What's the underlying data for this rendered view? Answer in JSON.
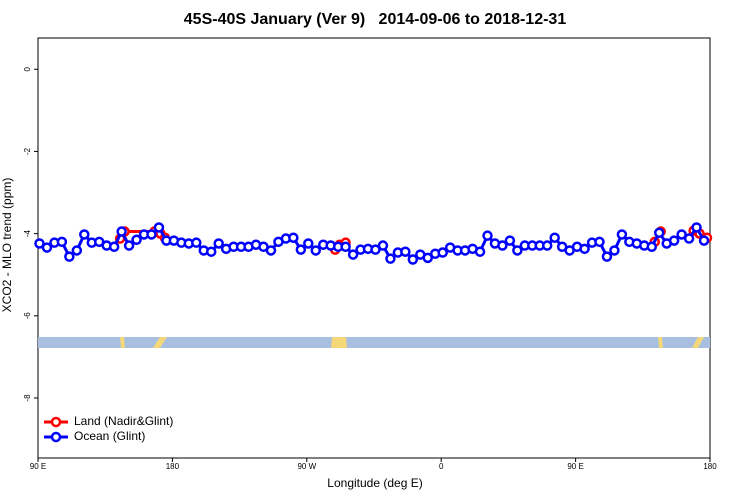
{
  "chart_data": {
    "type": "line",
    "title": "45S-40S January (Ver 9)   2014-09-06 to 2018-12-31",
    "x_label": "Longitude (deg E)",
    "y_label": "XCO2 - MLO trend (ppm)",
    "xlim": [
      90,
      540
    ],
    "xticks": [
      {
        "value": 90,
        "label": "90 E"
      },
      180,
      {
        "value": 270,
        "label": "90 W"
      },
      {
        "value": 360,
        "label": "0"
      },
      {
        "value": 450,
        "label": "90 E"
      },
      {
        "value": 540,
        "label": "180"
      }
    ],
    "ylim": [
      -9.46,
      0.76
    ],
    "yticks": [
      0,
      -2,
      -4,
      -6,
      -8
    ],
    "legend": "bottom-left",
    "series": [
      {
        "name": "Land (Nadir&Glint)",
        "color": "#ff0000",
        "x": [
          145,
          148,
          168,
          172,
          175,
          null,
          289,
          292,
          296,
          null,
          503,
          507,
          null,
          529,
          533,
          538
        ],
        "values": [
          -4.12,
          -3.95,
          -3.95,
          -4.0,
          -4.1,
          null,
          -4.39,
          -4.27,
          -4.22,
          null,
          -4.2,
          -3.95,
          null,
          -3.93,
          -4.0,
          -4.1
        ]
      },
      {
        "name": "Ocean (Glint)",
        "color": "#0000ff",
        "x": [
          91,
          96,
          101,
          106,
          111,
          116,
          121,
          126,
          131,
          136,
          141,
          146,
          151,
          156,
          161,
          166,
          171,
          176,
          181,
          186,
          191,
          196,
          201,
          206,
          211,
          216,
          221,
          226,
          231,
          236,
          241,
          246,
          251,
          256,
          261,
          266,
          271,
          276,
          281,
          286,
          291,
          296,
          301,
          306,
          311,
          316,
          321,
          326,
          331,
          336,
          341,
          346,
          351,
          356,
          361,
          366,
          371,
          376,
          381,
          386,
          391,
          396,
          401,
          406,
          411,
          416,
          421,
          426,
          431,
          436,
          441,
          446,
          451,
          456,
          461,
          466,
          471,
          476,
          481,
          486,
          491,
          496,
          501,
          506,
          511,
          516,
          521,
          526,
          531,
          536
        ],
        "values": [
          -4.24,
          -4.34,
          -4.22,
          -4.2,
          -4.56,
          -4.41,
          -4.02,
          -4.22,
          -4.2,
          -4.29,
          -4.32,
          -3.95,
          -4.29,
          -4.15,
          -4.02,
          -4.02,
          -3.85,
          -4.17,
          -4.17,
          -4.22,
          -4.24,
          -4.22,
          -4.41,
          -4.44,
          -4.24,
          -4.37,
          -4.32,
          -4.32,
          -4.32,
          -4.27,
          -4.32,
          -4.41,
          -4.2,
          -4.12,
          -4.1,
          -4.39,
          -4.24,
          -4.41,
          -4.27,
          -4.29,
          -4.32,
          -4.32,
          -4.51,
          -4.39,
          -4.37,
          -4.39,
          -4.29,
          -4.61,
          -4.46,
          -4.44,
          -4.63,
          -4.51,
          -4.59,
          -4.49,
          -4.46,
          -4.34,
          -4.41,
          -4.41,
          -4.37,
          -4.44,
          -4.05,
          -4.24,
          -4.29,
          -4.17,
          -4.41,
          -4.29,
          -4.29,
          -4.29,
          -4.29,
          -4.1,
          -4.32,
          -4.41,
          -4.32,
          -4.37,
          -4.22,
          -4.2,
          -4.56,
          -4.41,
          -4.02,
          -4.2,
          -4.24,
          -4.29,
          -4.32,
          -3.98,
          -4.24,
          -4.17,
          -4.02,
          -4.12,
          -3.85,
          -4.17
        ]
      }
    ]
  }
}
